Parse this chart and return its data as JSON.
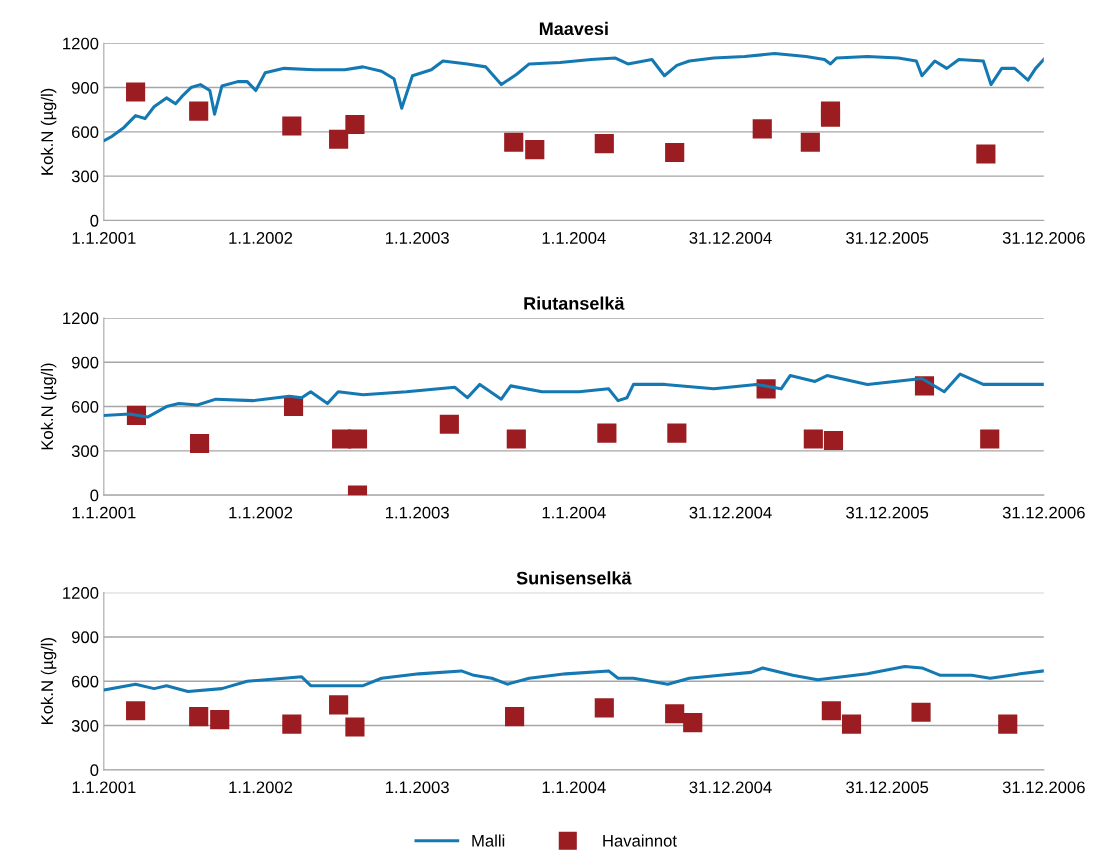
{
  "chart_data": [
    {
      "type": "line",
      "title": "Maavesi",
      "ylabel": "Kok.N (µg/l)",
      "xlim": [
        "2001-01-01",
        "2006-12-31"
      ],
      "xticks": [
        {
          "value": "2001-01-01",
          "label": "1.1.2001"
        },
        {
          "value": "2002-01-01",
          "label": "1.1.2002"
        },
        {
          "value": "2003-01-01",
          "label": "1.1.2003"
        },
        {
          "value": "2004-01-01",
          "label": "1.1.2004"
        },
        {
          "value": "2004-12-31",
          "label": "31.12.2004"
        },
        {
          "value": "2005-12-31",
          "label": "31.12.2005"
        },
        {
          "value": "2006-12-31",
          "label": "31.12.2006"
        }
      ],
      "ylim": [
        0,
        1200
      ],
      "yticks": [
        0,
        300,
        600,
        900,
        1200
      ],
      "grid": "y",
      "legend": "bottom",
      "series": [
        {
          "name": "Malli",
          "color": "#1479b3",
          "marker": "none",
          "x": [
            "2001-01-01",
            "2001-01-20",
            "2001-02-17",
            "2001-03-16",
            "2001-04-07",
            "2001-04-28",
            "2001-05-27",
            "2001-06-17",
            "2001-07-02",
            "2001-07-23",
            "2001-08-14",
            "2001-09-05",
            "2001-09-16",
            "2001-10-03",
            "2001-11-09",
            "2001-12-01",
            "2001-12-21",
            "2002-01-12",
            "2002-02-25",
            "2002-05-06",
            "2002-07-16",
            "2002-08-28",
            "2002-10-10",
            "2002-11-08",
            "2002-11-26",
            "2002-12-21",
            "2003-02-03",
            "2003-03-02",
            "2003-04-28",
            "2003-06-10",
            "2003-07-16",
            "2003-08-21",
            "2003-09-19",
            "2003-11-30",
            "2004-02-10",
            "2004-04-07",
            "2004-05-06",
            "2004-07-01",
            "2004-07-30",
            "2004-08-28",
            "2004-09-26",
            "2004-11-22",
            "2005-02-02",
            "2005-04-13",
            "2005-06-25",
            "2005-08-07",
            "2005-08-21",
            "2005-09-04",
            "2005-11-15",
            "2006-01-26",
            "2006-03-09",
            "2006-03-22",
            "2006-04-21",
            "2006-05-19",
            "2006-06-16",
            "2006-08-12",
            "2006-08-30",
            "2006-09-24",
            "2006-10-24",
            "2006-11-24",
            "2006-12-12",
            "2006-12-31"
          ],
          "values": [
            540,
            570,
            630,
            710,
            690,
            770,
            830,
            790,
            840,
            900,
            920,
            880,
            720,
            910,
            940,
            940,
            880,
            1000,
            1030,
            1020,
            1020,
            1040,
            1010,
            960,
            760,
            980,
            1020,
            1080,
            1060,
            1040,
            920,
            990,
            1060,
            1070,
            1090,
            1100,
            1060,
            1090,
            980,
            1050,
            1080,
            1100,
            1110,
            1130,
            1110,
            1090,
            1060,
            1100,
            1110,
            1100,
            1080,
            980,
            1080,
            1030,
            1090,
            1080,
            920,
            1030,
            1030,
            950,
            1030,
            1090
          ]
        },
        {
          "name": "Havainnot",
          "type": "scatter",
          "color": "#9b1c21",
          "marker": "square",
          "x": [
            "2001-03-16",
            "2001-08-10",
            "2002-03-15",
            "2002-07-02",
            "2002-08-09",
            "2003-08-14",
            "2003-10-02",
            "2004-03-12",
            "2004-08-23",
            "2005-03-15",
            "2005-07-05",
            "2005-08-21",
            "2005-08-21",
            "2006-08-18"
          ],
          "values": [
            870,
            740,
            640,
            550,
            650,
            530,
            480,
            520,
            460,
            620,
            530,
            700,
            740,
            450
          ]
        }
      ]
    },
    {
      "type": "line",
      "title": "Riutanselkä",
      "ylabel": "Kok.N (µg/l)",
      "xlim": [
        "2001-01-01",
        "2006-12-31"
      ],
      "xticks": [
        {
          "value": "2001-01-01",
          "label": "1.1.2001"
        },
        {
          "value": "2002-01-01",
          "label": "1.1.2002"
        },
        {
          "value": "2003-01-01",
          "label": "1.1.2003"
        },
        {
          "value": "2004-01-01",
          "label": "1.1.2004"
        },
        {
          "value": "2004-12-31",
          "label": "31.12.2004"
        },
        {
          "value": "2005-12-31",
          "label": "31.12.2005"
        },
        {
          "value": "2006-12-31",
          "label": "31.12.2006"
        }
      ],
      "ylim": [
        0,
        1200
      ],
      "yticks": [
        0,
        300,
        600,
        900,
        1200
      ],
      "grid": "y",
      "series": [
        {
          "name": "Malli",
          "color": "#1479b3",
          "marker": "none",
          "x": [
            "2001-01-01",
            "2001-03-02",
            "2001-04-14",
            "2001-05-27",
            "2001-06-25",
            "2001-08-07",
            "2001-09-19",
            "2001-12-14",
            "2002-03-09",
            "2002-04-07",
            "2002-04-28",
            "2002-06-06",
            "2002-07-01",
            "2002-08-28",
            "2002-12-07",
            "2003-03-30",
            "2003-04-28",
            "2003-05-27",
            "2003-07-16",
            "2003-08-07",
            "2003-10-19",
            "2004-01-13",
            "2004-03-22",
            "2004-04-13",
            "2004-05-04",
            "2004-05-19",
            "2004-07-31",
            "2004-11-22",
            "2005-03-01",
            "2005-04-28",
            "2005-05-19",
            "2005-07-16",
            "2005-08-13",
            "2005-11-15",
            "2006-03-22",
            "2006-05-13",
            "2006-06-19",
            "2006-08-12",
            "2006-11-06",
            "2006-12-31"
          ],
          "values": [
            540,
            550,
            530,
            600,
            620,
            610,
            650,
            640,
            670,
            660,
            700,
            620,
            700,
            680,
            700,
            730,
            660,
            750,
            650,
            740,
            700,
            700,
            720,
            640,
            660,
            750,
            750,
            720,
            750,
            720,
            810,
            770,
            810,
            750,
            790,
            700,
            820,
            750,
            750,
            750
          ]
        },
        {
          "name": "Havainnot",
          "type": "scatter",
          "color": "#9b1c21",
          "marker": "square",
          "x": [
            "2001-03-18",
            "2001-08-12",
            "2002-03-19",
            "2002-07-09",
            "2002-08-15",
            "2002-08-15",
            "2003-03-17",
            "2003-08-20",
            "2004-03-18",
            "2004-08-28",
            "2005-03-24",
            "2005-07-12",
            "2005-08-28",
            "2006-03-28",
            "2006-08-27"
          ],
          "values": [
            540,
            350,
            600,
            380,
            380,
            0,
            480,
            380,
            420,
            420,
            720,
            380,
            370,
            740,
            380
          ]
        }
      ]
    },
    {
      "type": "line",
      "title": "Sunisenselkä",
      "ylabel": "Kok.N (µg/l)",
      "xlim": [
        "2001-01-01",
        "2006-12-31"
      ],
      "xticks": [
        {
          "value": "2001-01-01",
          "label": "1.1.2001"
        },
        {
          "value": "2002-01-01",
          "label": "1.1.2002"
        },
        {
          "value": "2003-01-01",
          "label": "1.1.2003"
        },
        {
          "value": "2004-01-01",
          "label": "1.1.2004"
        },
        {
          "value": "2004-12-31",
          "label": "31.12.2004"
        },
        {
          "value": "2005-12-31",
          "label": "31.12.2005"
        },
        {
          "value": "2006-12-31",
          "label": "31.12.2006"
        }
      ],
      "ylim": [
        0,
        1200
      ],
      "yticks": [
        0,
        300,
        600,
        900,
        1200
      ],
      "grid": "y",
      "series": [
        {
          "name": "Malli",
          "color": "#1479b3",
          "marker": "none",
          "x": [
            "2001-01-01",
            "2001-03-16",
            "2001-04-28",
            "2001-05-27",
            "2001-07-16",
            "2001-10-03",
            "2001-12-01",
            "2002-02-25",
            "2002-04-07",
            "2002-04-28",
            "2002-07-01",
            "2002-08-28",
            "2002-10-10",
            "2003-01-05",
            "2003-04-14",
            "2003-05-13",
            "2003-06-24",
            "2003-07-30",
            "2003-09-19",
            "2003-12-13",
            "2004-03-22",
            "2004-04-13",
            "2004-05-19",
            "2004-08-07",
            "2004-09-26",
            "2004-12-07",
            "2005-02-17",
            "2005-03-16",
            "2005-05-25",
            "2005-07-22",
            "2005-11-15",
            "2006-02-10",
            "2006-03-22",
            "2006-05-04",
            "2006-07-16",
            "2006-08-28",
            "2006-11-06",
            "2006-12-31"
          ],
          "values": [
            540,
            580,
            550,
            570,
            530,
            550,
            600,
            620,
            630,
            570,
            570,
            570,
            620,
            650,
            670,
            640,
            620,
            580,
            620,
            650,
            670,
            620,
            620,
            580,
            620,
            640,
            660,
            690,
            640,
            610,
            650,
            700,
            690,
            640,
            640,
            620,
            650,
            670
          ]
        },
        {
          "name": "Havainnot",
          "type": "scatter",
          "color": "#9b1c21",
          "marker": "square",
          "x": [
            "2001-03-16",
            "2001-08-10",
            "2001-09-28",
            "2002-03-15",
            "2002-07-02",
            "2002-08-09",
            "2003-08-16",
            "2004-03-12",
            "2004-08-23",
            "2004-10-04",
            "2005-08-23",
            "2005-10-09",
            "2006-03-20",
            "2006-10-08"
          ],
          "values": [
            400,
            360,
            340,
            310,
            440,
            290,
            360,
            420,
            380,
            320,
            400,
            310,
            390,
            310
          ]
        }
      ]
    }
  ]
}
